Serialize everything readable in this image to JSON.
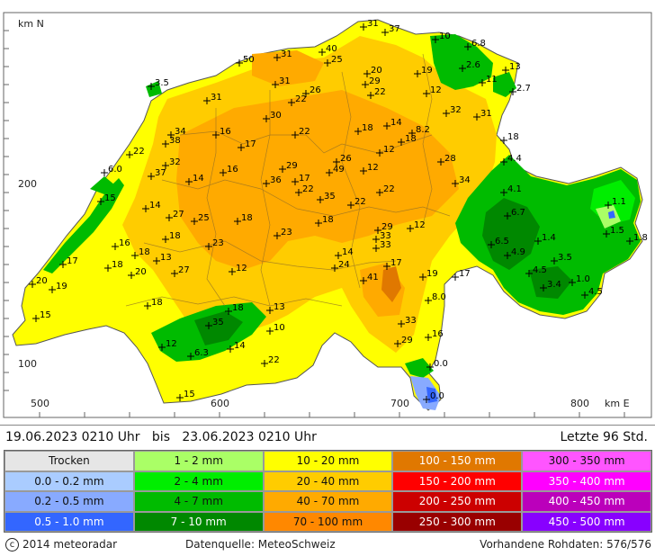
{
  "axes": {
    "y_title": "km N",
    "x_title": "km E",
    "x_ticks": [
      "500",
      "600",
      "700",
      "800"
    ],
    "y_ticks": [
      "200",
      "100"
    ]
  },
  "header": {
    "range_text": "19.06.2023 0210 Uhr   bis   23.06.2023 0210 Uhr",
    "last_text": "Letzte 96 Std."
  },
  "legend": [
    {
      "label": "Trocken",
      "color": "#e6e6e6"
    },
    {
      "label": "1 - 2 mm",
      "color": "#aaff66"
    },
    {
      "label": "10 - 20 mm",
      "color": "#ffff00"
    },
    {
      "label": "100 - 150 mm",
      "color": "#e07800"
    },
    {
      "label": "300 - 350 mm",
      "color": "#ff55ff"
    },
    {
      "label": "0.0 - 0.2 mm",
      "color": "#aaccff"
    },
    {
      "label": "2 - 4 mm",
      "color": "#00ee00"
    },
    {
      "label": "20 - 40 mm",
      "color": "#ffcc00"
    },
    {
      "label": "150 - 200 mm",
      "color": "#ff0000"
    },
    {
      "label": "350 - 400 mm",
      "color": "#ff00ff"
    },
    {
      "label": "0.2 - 0.5 mm",
      "color": "#88aaff"
    },
    {
      "label": "4 - 7 mm",
      "color": "#00bb00"
    },
    {
      "label": "40 - 70 mm",
      "color": "#ffaa00"
    },
    {
      "label": "200 - 250 mm",
      "color": "#cc0000"
    },
    {
      "label": "400 - 450 mm",
      "color": "#bb00bb"
    },
    {
      "label": "0.5 - 1.0 mm",
      "color": "#3366ff"
    },
    {
      "label": "7 - 10 mm",
      "color": "#008800"
    },
    {
      "label": "70 - 100 mm",
      "color": "#ff8800"
    },
    {
      "label": "250 - 300 mm",
      "color": "#990000"
    },
    {
      "label": "450 - 500 mm",
      "color": "#8800ff"
    }
  ],
  "footer": {
    "copyright_symbol": "c",
    "copyright": "2014 meteoradar",
    "source": "Datenquelle: MeteoSchweiz",
    "raw_data": "Vorhandene Rohdaten: 576/576"
  },
  "stations": [
    {
      "v": "31",
      "x": 404,
      "y": 30
    },
    {
      "v": "37",
      "x": 428,
      "y": 36
    },
    {
      "v": "10",
      "x": 484,
      "y": 44
    },
    {
      "v": "6.8",
      "x": 520,
      "y": 52
    },
    {
      "v": "40",
      "x": 358,
      "y": 58
    },
    {
      "v": "25",
      "x": 364,
      "y": 70
    },
    {
      "v": "31",
      "x": 308,
      "y": 64
    },
    {
      "v": "50",
      "x": 266,
      "y": 70
    },
    {
      "v": "20",
      "x": 408,
      "y": 82
    },
    {
      "v": "19",
      "x": 464,
      "y": 82
    },
    {
      "v": "2.6",
      "x": 514,
      "y": 76
    },
    {
      "v": "13",
      "x": 562,
      "y": 78
    },
    {
      "v": "3.5",
      "x": 168,
      "y": 96
    },
    {
      "v": "31",
      "x": 306,
      "y": 94
    },
    {
      "v": "29",
      "x": 406,
      "y": 94
    },
    {
      "v": "11",
      "x": 536,
      "y": 92
    },
    {
      "v": "26",
      "x": 340,
      "y": 104
    },
    {
      "v": "22",
      "x": 412,
      "y": 106
    },
    {
      "v": "12",
      "x": 474,
      "y": 104
    },
    {
      "v": "2.7",
      "x": 570,
      "y": 102
    },
    {
      "v": "31",
      "x": 230,
      "y": 112
    },
    {
      "v": "22",
      "x": 324,
      "y": 114
    },
    {
      "v": "32",
      "x": 496,
      "y": 126
    },
    {
      "v": "31",
      "x": 530,
      "y": 130
    },
    {
      "v": "30",
      "x": 296,
      "y": 132
    },
    {
      "v": "14",
      "x": 430,
      "y": 140
    },
    {
      "v": "8.2",
      "x": 458,
      "y": 148
    },
    {
      "v": "34",
      "x": 190,
      "y": 150
    },
    {
      "v": "16",
      "x": 240,
      "y": 150
    },
    {
      "v": "22",
      "x": 328,
      "y": 150
    },
    {
      "v": "18",
      "x": 398,
      "y": 146
    },
    {
      "v": "18",
      "x": 446,
      "y": 158
    },
    {
      "v": "18",
      "x": 560,
      "y": 156
    },
    {
      "v": "38",
      "x": 184,
      "y": 160
    },
    {
      "v": "17",
      "x": 268,
      "y": 164
    },
    {
      "v": "12",
      "x": 422,
      "y": 170
    },
    {
      "v": "22",
      "x": 144,
      "y": 172
    },
    {
      "v": "26",
      "x": 374,
      "y": 180
    },
    {
      "v": "28",
      "x": 490,
      "y": 180
    },
    {
      "v": "4.4",
      "x": 560,
      "y": 180
    },
    {
      "v": "32",
      "x": 184,
      "y": 184
    },
    {
      "v": "29",
      "x": 314,
      "y": 188
    },
    {
      "v": "49",
      "x": 366,
      "y": 192
    },
    {
      "v": "12",
      "x": 404,
      "y": 190
    },
    {
      "v": "6.0",
      "x": 116,
      "y": 192
    },
    {
      "v": "37",
      "x": 168,
      "y": 196
    },
    {
      "v": "16",
      "x": 248,
      "y": 192
    },
    {
      "v": "34",
      "x": 506,
      "y": 204
    },
    {
      "v": "14",
      "x": 210,
      "y": 202
    },
    {
      "v": "36",
      "x": 296,
      "y": 204
    },
    {
      "v": "17",
      "x": 328,
      "y": 202
    },
    {
      "v": "22",
      "x": 332,
      "y": 214
    },
    {
      "v": "22",
      "x": 422,
      "y": 214
    },
    {
      "v": "4.1",
      "x": 560,
      "y": 214
    },
    {
      "v": "15",
      "x": 112,
      "y": 224
    },
    {
      "v": "35",
      "x": 356,
      "y": 222
    },
    {
      "v": "22",
      "x": 390,
      "y": 228
    },
    {
      "v": "1.1",
      "x": 676,
      "y": 228
    },
    {
      "v": "14",
      "x": 162,
      "y": 232
    },
    {
      "v": "27",
      "x": 188,
      "y": 242
    },
    {
      "v": "18",
      "x": 264,
      "y": 246
    },
    {
      "v": "18",
      "x": 354,
      "y": 248
    },
    {
      "v": "6.7",
      "x": 564,
      "y": 240
    },
    {
      "v": "25",
      "x": 216,
      "y": 246
    },
    {
      "v": "29",
      "x": 420,
      "y": 256
    },
    {
      "v": "12",
      "x": 456,
      "y": 254
    },
    {
      "v": "1.5",
      "x": 674,
      "y": 260
    },
    {
      "v": "18",
      "x": 184,
      "y": 266
    },
    {
      "v": "23",
      "x": 308,
      "y": 262
    },
    {
      "v": "33",
      "x": 418,
      "y": 266
    },
    {
      "v": "1.4",
      "x": 598,
      "y": 268
    },
    {
      "v": "1.8",
      "x": 700,
      "y": 268
    },
    {
      "v": "16",
      "x": 128,
      "y": 274
    },
    {
      "v": "23",
      "x": 232,
      "y": 274
    },
    {
      "v": "33",
      "x": 418,
      "y": 276
    },
    {
      "v": "6.5",
      "x": 546,
      "y": 272
    },
    {
      "v": "18",
      "x": 150,
      "y": 284
    },
    {
      "v": "13",
      "x": 174,
      "y": 290
    },
    {
      "v": "14",
      "x": 376,
      "y": 284
    },
    {
      "v": "4.9",
      "x": 564,
      "y": 284
    },
    {
      "v": "17",
      "x": 70,
      "y": 294
    },
    {
      "v": "18",
      "x": 120,
      "y": 298
    },
    {
      "v": "24",
      "x": 372,
      "y": 298
    },
    {
      "v": "17",
      "x": 430,
      "y": 296
    },
    {
      "v": "3.5",
      "x": 616,
      "y": 290
    },
    {
      "v": "20",
      "x": 146,
      "y": 306
    },
    {
      "v": "27",
      "x": 194,
      "y": 304
    },
    {
      "v": "12",
      "x": 258,
      "y": 302
    },
    {
      "v": "19",
      "x": 470,
      "y": 308
    },
    {
      "v": "17",
      "x": 506,
      "y": 308
    },
    {
      "v": "4.5",
      "x": 588,
      "y": 304
    },
    {
      "v": "20",
      "x": 36,
      "y": 316
    },
    {
      "v": "19",
      "x": 58,
      "y": 322
    },
    {
      "v": "41",
      "x": 404,
      "y": 312
    },
    {
      "v": "1.0",
      "x": 636,
      "y": 314
    },
    {
      "v": "3.4",
      "x": 604,
      "y": 320
    },
    {
      "v": "4.5",
      "x": 650,
      "y": 328
    },
    {
      "v": "18",
      "x": 164,
      "y": 340
    },
    {
      "v": "8.0",
      "x": 476,
      "y": 334
    },
    {
      "v": "13",
      "x": 300,
      "y": 345
    },
    {
      "v": "18",
      "x": 254,
      "y": 346
    },
    {
      "v": "15",
      "x": 40,
      "y": 354
    },
    {
      "v": "33",
      "x": 446,
      "y": 360
    },
    {
      "v": "35",
      "x": 232,
      "y": 362
    },
    {
      "v": "10",
      "x": 300,
      "y": 368
    },
    {
      "v": "16",
      "x": 476,
      "y": 375
    },
    {
      "v": "12",
      "x": 180,
      "y": 386
    },
    {
      "v": "14",
      "x": 256,
      "y": 388
    },
    {
      "v": "29",
      "x": 442,
      "y": 382
    },
    {
      "v": "6.3",
      "x": 212,
      "y": 396
    },
    {
      "v": "22",
      "x": 294,
      "y": 404
    },
    {
      "v": "0.0",
      "x": 478,
      "y": 408
    },
    {
      "v": "15",
      "x": 200,
      "y": 442
    },
    {
      "v": "0.0",
      "x": 474,
      "y": 444
    }
  ]
}
